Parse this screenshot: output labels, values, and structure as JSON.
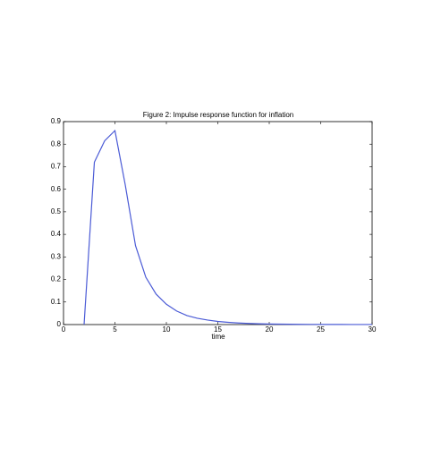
{
  "chart_data": {
    "type": "line",
    "title": "Figure 2: Impulse response function for inflation",
    "x_label": "time",
    "x": [
      2,
      3,
      4,
      5,
      6,
      7,
      8,
      9,
      10,
      11,
      12,
      13,
      14,
      15,
      16,
      17,
      18,
      19,
      20,
      21,
      22,
      23,
      24,
      25,
      26,
      27,
      28,
      29,
      30
    ],
    "values": [
      0,
      0.72,
      0.815,
      0.86,
      0.62,
      0.35,
      0.21,
      0.135,
      0.09,
      0.06,
      0.04,
      0.028,
      0.02,
      0.014,
      0.01,
      0.007,
      0.005,
      0.0035,
      0.0025,
      0.002,
      0.0015,
      0.001,
      0.0008,
      0.0006,
      0.0005,
      0.0004,
      0.0003,
      0.0002,
      0.0002
    ],
    "color": "#4b5bd6",
    "xlim": [
      0,
      30
    ],
    "xticks": [
      0,
      5,
      10,
      15,
      20,
      25,
      30
    ],
    "ylim": [
      0,
      0.9
    ],
    "yticks": [
      0,
      0.1,
      0.2,
      0.3,
      0.4,
      0.5,
      0.6,
      0.7,
      0.8,
      0.9
    ]
  }
}
